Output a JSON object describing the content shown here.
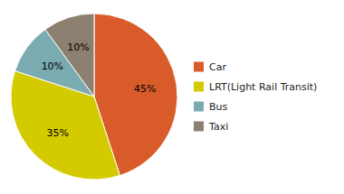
{
  "chart_data": {
    "type": "pie",
    "categories": [
      "Car",
      "LRT(Light Rail Transit)",
      "Bus",
      "Taxi"
    ],
    "values": [
      45,
      35,
      10,
      10
    ],
    "value_labels": [
      "45%",
      "35%",
      "10%",
      "10%"
    ],
    "colors": [
      "#D95B2A",
      "#D4CA00",
      "#7AABB0",
      "#8C8070"
    ],
    "data_labels": true,
    "legend": "right"
  }
}
